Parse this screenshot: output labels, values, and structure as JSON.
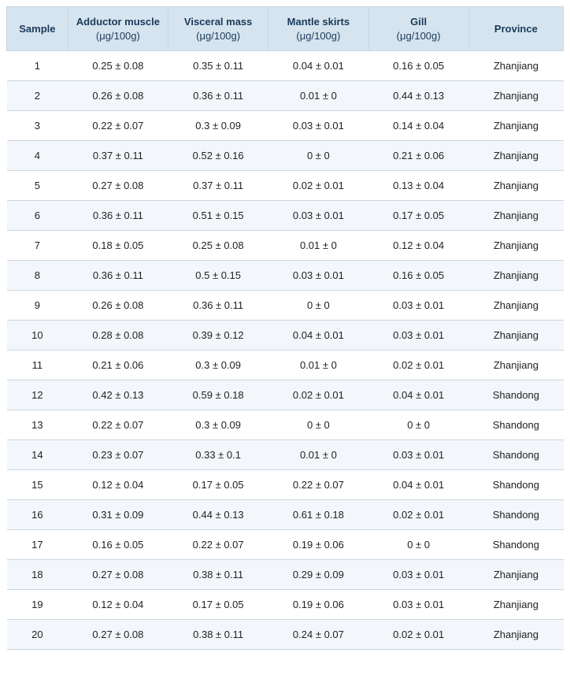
{
  "table": {
    "type": "table",
    "background_color": "#ffffff",
    "header_bg": "#d6e4ef",
    "header_text_color": "#1a3a5a",
    "row_alt_bg": "#f3f7fb",
    "border_color": "#c8d6e2",
    "font_size_header": 13,
    "font_size_cell": 13,
    "unit_label": "(μg/100g)",
    "columns": [
      {
        "key": "sample",
        "label": "Sample",
        "has_unit": false,
        "width_pct": 11
      },
      {
        "key": "adductor",
        "label": "Adductor muscle",
        "has_unit": true,
        "width_pct": 18
      },
      {
        "key": "visceral",
        "label": "Visceral mass",
        "has_unit": true,
        "width_pct": 18
      },
      {
        "key": "mantle",
        "label": "Mantle skirts",
        "has_unit": true,
        "width_pct": 18
      },
      {
        "key": "gill",
        "label": "Gill",
        "has_unit": true,
        "width_pct": 18
      },
      {
        "key": "province",
        "label": "Province",
        "has_unit": false,
        "width_pct": 17
      }
    ],
    "rows": [
      {
        "sample": "1",
        "adductor": "0.25 ± 0.08",
        "visceral": "0.35 ± 0.11",
        "mantle": "0.04 ± 0.01",
        "gill": "0.16 ± 0.05",
        "province": "Zhanjiang"
      },
      {
        "sample": "2",
        "adductor": "0.26 ± 0.08",
        "visceral": "0.36 ± 0.11",
        "mantle": "0.01 ± 0",
        "gill": "0.44 ± 0.13",
        "province": "Zhanjiang"
      },
      {
        "sample": "3",
        "adductor": "0.22 ± 0.07",
        "visceral": "0.3 ± 0.09",
        "mantle": "0.03 ± 0.01",
        "gill": "0.14 ± 0.04",
        "province": "Zhanjiang"
      },
      {
        "sample": "4",
        "adductor": "0.37 ± 0.11",
        "visceral": "0.52 ± 0.16",
        "mantle": "0 ± 0",
        "gill": "0.21 ± 0.06",
        "province": "Zhanjiang"
      },
      {
        "sample": "5",
        "adductor": "0.27 ± 0.08",
        "visceral": "0.37 ± 0.11",
        "mantle": "0.02 ± 0.01",
        "gill": "0.13 ± 0.04",
        "province": "Zhanjiang"
      },
      {
        "sample": "6",
        "adductor": "0.36 ± 0.11",
        "visceral": "0.51 ± 0.15",
        "mantle": "0.03 ± 0.01",
        "gill": "0.17 ± 0.05",
        "province": "Zhanjiang"
      },
      {
        "sample": "7",
        "adductor": "0.18 ± 0.05",
        "visceral": "0.25 ± 0.08",
        "mantle": "0.01 ± 0",
        "gill": "0.12 ± 0.04",
        "province": "Zhanjiang"
      },
      {
        "sample": "8",
        "adductor": "0.36 ± 0.11",
        "visceral": "0.5 ± 0.15",
        "mantle": "0.03 ± 0.01",
        "gill": "0.16 ± 0.05",
        "province": "Zhanjiang"
      },
      {
        "sample": "9",
        "adductor": "0.26 ± 0.08",
        "visceral": "0.36 ± 0.11",
        "mantle": "0 ± 0",
        "gill": "0.03 ± 0.01",
        "province": "Zhanjiang"
      },
      {
        "sample": "10",
        "adductor": "0.28 ± 0.08",
        "visceral": "0.39 ± 0.12",
        "mantle": "0.04 ± 0.01",
        "gill": "0.03 ± 0.01",
        "province": "Zhanjiang"
      },
      {
        "sample": "11",
        "adductor": "0.21 ± 0.06",
        "visceral": "0.3 ± 0.09",
        "mantle": "0.01 ± 0",
        "gill": "0.02 ± 0.01",
        "province": "Zhanjiang"
      },
      {
        "sample": "12",
        "adductor": "0.42 ± 0.13",
        "visceral": "0.59 ± 0.18",
        "mantle": "0.02 ± 0.01",
        "gill": "0.04 ± 0.01",
        "province": "Shandong"
      },
      {
        "sample": "13",
        "adductor": "0.22 ± 0.07",
        "visceral": "0.3 ± 0.09",
        "mantle": "0 ± 0",
        "gill": "0 ± 0",
        "province": "Shandong"
      },
      {
        "sample": "14",
        "adductor": "0.23 ± 0.07",
        "visceral": "0.33 ± 0.1",
        "mantle": "0.01 ± 0",
        "gill": "0.03 ± 0.01",
        "province": "Shandong"
      },
      {
        "sample": "15",
        "adductor": "0.12 ± 0.04",
        "visceral": "0.17 ± 0.05",
        "mantle": "0.22 ± 0.07",
        "gill": "0.04 ± 0.01",
        "province": "Shandong"
      },
      {
        "sample": "16",
        "adductor": "0.31 ± 0.09",
        "visceral": "0.44 ± 0.13",
        "mantle": "0.61 ± 0.18",
        "gill": "0.02 ± 0.01",
        "province": "Shandong"
      },
      {
        "sample": "17",
        "adductor": "0.16 ± 0.05",
        "visceral": "0.22 ± 0.07",
        "mantle": "0.19 ± 0.06",
        "gill": "0 ± 0",
        "province": "Shandong"
      },
      {
        "sample": "18",
        "adductor": "0.27 ± 0.08",
        "visceral": "0.38 ± 0.11",
        "mantle": "0.29 ± 0.09",
        "gill": "0.03 ± 0.01",
        "province": "Zhanjiang"
      },
      {
        "sample": "19",
        "adductor": "0.12 ± 0.04",
        "visceral": "0.17 ± 0.05",
        "mantle": "0.19 ± 0.06",
        "gill": "0.03 ± 0.01",
        "province": "Zhanjiang"
      },
      {
        "sample": "20",
        "adductor": "0.27 ± 0.08",
        "visceral": "0.38 ± 0.11",
        "mantle": "0.24 ± 0.07",
        "gill": "0.02 ± 0.01",
        "province": "Zhanjiang"
      }
    ]
  }
}
